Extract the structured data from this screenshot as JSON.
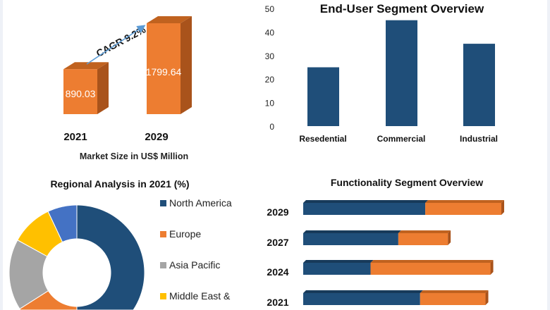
{
  "colors": {
    "orange": "#ed7d31",
    "orange_dark": "#a9531b",
    "navy": "#1f4e79",
    "navy_dark": "#173a5a",
    "gray": "#a5a5a5",
    "yellow": "#ffc000",
    "blue": "#4472c4",
    "arrow": "#5b9bd5"
  },
  "chart_data": [
    {
      "type": "bar",
      "style": "3d-column",
      "xlabel": "Market Size in US$ Million",
      "categories": [
        "2021",
        "2029"
      ],
      "values": [
        890.03,
        1799.64
      ],
      "data_labels": [
        "890.03",
        "1799.64"
      ],
      "annotation": "CAGR 9.2%"
    },
    {
      "type": "bar",
      "title": "End-User Segment Overview",
      "categories": [
        "Resedential",
        "Commercial",
        "Industrial"
      ],
      "values": [
        25,
        45,
        35
      ],
      "ylim": [
        0,
        50
      ],
      "yticks": [
        "0",
        "10",
        "20",
        "30",
        "40",
        "50"
      ],
      "grid": false
    },
    {
      "type": "pie",
      "style": "donut",
      "title": "Regional Analysis in 2021 (%)",
      "labels": [
        "North America",
        "Europe",
        "Asia Pacific",
        "Middle East &",
        ""
      ],
      "values": [
        50,
        16,
        17,
        10,
        7
      ],
      "legend": "right"
    },
    {
      "type": "bar",
      "orientation": "horizontal",
      "stacked": true,
      "style": "3d",
      "title": "Functionality Segment Overview",
      "categories": [
        "2029",
        "2027",
        "2024",
        "2021"
      ],
      "series": [
        {
          "values": [
            61.6,
            48,
            34,
            59
          ]
        },
        {
          "values": [
            38.4,
            25,
            60.5,
            33
          ]
        }
      ]
    }
  ]
}
